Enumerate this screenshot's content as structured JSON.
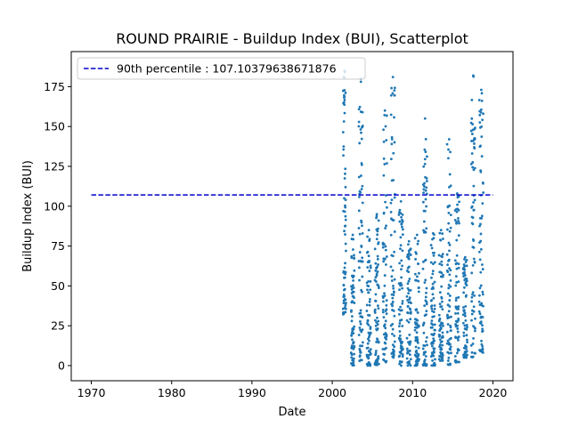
{
  "chart_data": {
    "type": "scatter",
    "title": "ROUND PRAIRIE - Buildup Index (BUI), Scatterplot",
    "xlabel": "Date",
    "ylabel": "Buildup Index (BUI)",
    "xlim": [
      1967.5,
      2022.5
    ],
    "ylim": [
      -9.5,
      197
    ],
    "xticks": [
      1970,
      1980,
      1990,
      2000,
      2010,
      2020
    ],
    "yticks": [
      0,
      25,
      50,
      75,
      100,
      125,
      150,
      175
    ],
    "grid": false,
    "legend_position": "top-left",
    "colors": {
      "points": "#1f77b4",
      "percentile_line": "#0000cc"
    },
    "percentile_line": {
      "label": "90th percentile : 107.10379638671876",
      "value": 107.10379638671876,
      "x_range": [
        1970,
        2020
      ],
      "style": "dashed"
    },
    "seasons": [
      {
        "start": 2001.35,
        "end": 2001.7,
        "min": 32,
        "max": 185
      },
      {
        "start": 2002.35,
        "end": 2002.75,
        "min": 0,
        "max": 82
      },
      {
        "start": 2003.3,
        "end": 2003.8,
        "min": 3,
        "max": 180
      },
      {
        "start": 2004.3,
        "end": 2004.8,
        "min": 0,
        "max": 85
      },
      {
        "start": 2005.3,
        "end": 2005.8,
        "min": 0,
        "max": 95
      },
      {
        "start": 2006.3,
        "end": 2006.8,
        "min": 2,
        "max": 160
      },
      {
        "start": 2007.3,
        "end": 2007.8,
        "min": 5,
        "max": 181
      },
      {
        "start": 2008.3,
        "end": 2008.8,
        "min": 0,
        "max": 103
      },
      {
        "start": 2009.3,
        "end": 2009.8,
        "min": 0,
        "max": 78
      },
      {
        "start": 2010.3,
        "end": 2010.8,
        "min": 0,
        "max": 82
      },
      {
        "start": 2011.3,
        "end": 2011.8,
        "min": 0,
        "max": 155
      },
      {
        "start": 2012.3,
        "end": 2012.8,
        "min": 0,
        "max": 83
      },
      {
        "start": 2013.3,
        "end": 2013.8,
        "min": 3,
        "max": 85
      },
      {
        "start": 2014.3,
        "end": 2014.8,
        "min": 0,
        "max": 142
      },
      {
        "start": 2015.3,
        "end": 2015.8,
        "min": 2,
        "max": 108
      },
      {
        "start": 2016.3,
        "end": 2016.8,
        "min": 5,
        "max": 68
      },
      {
        "start": 2017.3,
        "end": 2017.8,
        "min": 5,
        "max": 182
      },
      {
        "start": 2018.3,
        "end": 2018.8,
        "min": 8,
        "max": 173
      }
    ]
  }
}
